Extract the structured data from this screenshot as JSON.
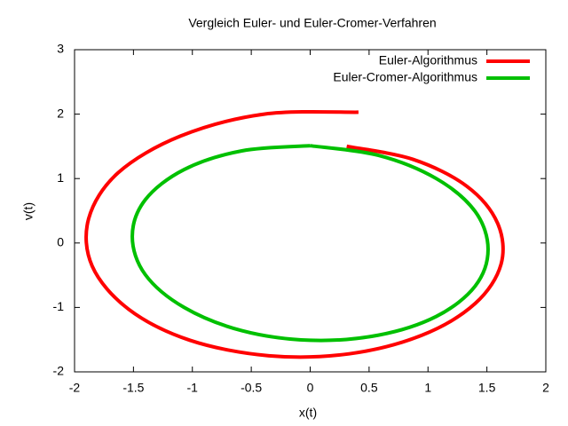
{
  "chart_data": {
    "type": "line",
    "title": "Vergleich Euler- und Euler-Cromer-Verfahren",
    "x_label": "x(t)",
    "y_label": "v(t)",
    "xlim": [
      -2,
      2
    ],
    "xticks": [
      -2,
      -1.5,
      -1,
      -0.5,
      0,
      0.5,
      1,
      1.5,
      2
    ],
    "ylim": [
      -2,
      3
    ],
    "yticks": [
      -2,
      -1,
      0,
      1,
      2,
      3
    ],
    "legend": "top-right",
    "series": [
      {
        "name": "Euler-Algorithmus",
        "color": "#ff0000",
        "x": [
          0.31,
          0.87,
          1.33,
          1.59,
          1.62,
          1.4,
          0.95,
          0.33,
          -0.35,
          -1.02,
          -1.54,
          -1.85,
          -1.88,
          -1.63,
          -1.1,
          -0.39,
          0.41
        ],
        "values": [
          1.5,
          1.3,
          0.88,
          0.31,
          -0.33,
          -0.94,
          -1.43,
          -1.72,
          -1.75,
          -1.51,
          -1.03,
          -0.36,
          0.38,
          1.09,
          1.66,
          2.0,
          2.03
        ]
      },
      {
        "name": "Euler-Cromer-Algorithmus",
        "color": "#00c000",
        "x": [
          0,
          0.58,
          1.07,
          1.4,
          1.51,
          1.4,
          1.07,
          0.58,
          0,
          -0.58,
          -1.07,
          -1.4,
          -1.51,
          -1.4,
          -1.07,
          -0.58,
          0
        ],
        "values": [
          1.51,
          1.36,
          1.0,
          0.49,
          -0.1,
          -0.67,
          -1.14,
          -1.43,
          -1.51,
          -1.36,
          -1.0,
          -0.49,
          0.1,
          0.67,
          1.14,
          1.43,
          1.51
        ]
      }
    ]
  }
}
